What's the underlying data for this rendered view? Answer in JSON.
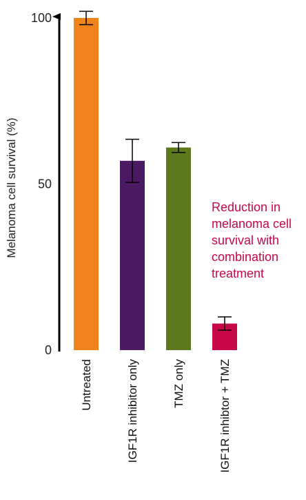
{
  "chart_data": {
    "type": "bar",
    "title": "",
    "xlabel": "",
    "ylabel": "Melanoma cell survival (%)",
    "ylim": [
      0,
      100
    ],
    "yticks": [
      0,
      50,
      100
    ],
    "categories": [
      "Untreated",
      "IGF1R inhibitor only",
      "TMZ only",
      "IGF1R inhibtor + TMZ"
    ],
    "values": [
      100,
      57,
      61,
      8
    ],
    "error": [
      2,
      6.5,
      1.5,
      2
    ],
    "colors": [
      "#F08319",
      "#4B1A63",
      "#5B7A1B",
      "#C8064A"
    ],
    "annotation": {
      "lines": [
        "Reduction in",
        "melanoma cell",
        "survival with",
        "combination",
        "treatment"
      ],
      "color": "#C8064A"
    },
    "grid": false,
    "legend": "none"
  }
}
